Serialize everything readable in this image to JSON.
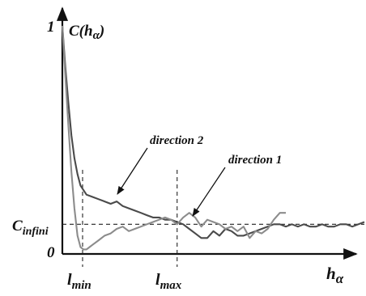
{
  "chart_data": {
    "type": "line",
    "title": "",
    "xlabel": "hα",
    "ylabel": "C(hα)",
    "xlim": [
      0,
      100
    ],
    "ylim": [
      0,
      1
    ],
    "grid": false,
    "legend": "none",
    "y_tick_labels": {
      "top": "1",
      "zero": "0",
      "c_infini_main": "C",
      "c_infini_sub": "infini"
    },
    "y_title": {
      "main": "C(h",
      "sub": "α",
      "close": ")"
    },
    "x_title": {
      "main": "h",
      "sub": "α"
    },
    "x_marks": [
      {
        "main": "l",
        "sub": "min",
        "x": 6.7
      },
      {
        "main": "l",
        "sub": "max",
        "x": 38
      }
    ],
    "c_infini_value": 0.13,
    "colors": {
      "direction_1": "#8c8c8c",
      "direction_2": "#4a4a4a",
      "axes": "#111111"
    },
    "series": [
      {
        "name": "direction 2",
        "x": [
          0,
          1,
          2,
          3,
          4,
          5,
          6,
          8,
          10,
          12,
          14,
          16,
          18,
          20,
          22,
          24,
          26,
          28,
          30,
          32,
          34,
          36,
          38,
          40,
          42,
          44,
          46,
          48,
          50,
          52,
          54,
          56,
          58,
          60,
          62,
          64,
          66,
          68,
          70,
          72,
          74,
          76,
          78,
          80,
          82,
          84,
          86,
          88,
          90,
          92,
          94,
          96,
          98,
          100
        ],
        "y": [
          1.0,
          0.82,
          0.66,
          0.52,
          0.42,
          0.35,
          0.3,
          0.26,
          0.25,
          0.24,
          0.23,
          0.22,
          0.23,
          0.21,
          0.2,
          0.19,
          0.18,
          0.17,
          0.16,
          0.16,
          0.15,
          0.15,
          0.14,
          0.13,
          0.11,
          0.09,
          0.07,
          0.07,
          0.1,
          0.08,
          0.11,
          0.1,
          0.08,
          0.08,
          0.09,
          0.1,
          0.11,
          0.12,
          0.13,
          0.13,
          0.12,
          0.13,
          0.12,
          0.13,
          0.12,
          0.12,
          0.13,
          0.12,
          0.12,
          0.13,
          0.13,
          0.12,
          0.13,
          0.14
        ]
      },
      {
        "name": "direction 1",
        "x": [
          0,
          1,
          2,
          3,
          4,
          5,
          6,
          7,
          8,
          9,
          10,
          12,
          14,
          16,
          18,
          20,
          22,
          24,
          26,
          28,
          30,
          32,
          34,
          36,
          38,
          40,
          42,
          44,
          46,
          48,
          50,
          52,
          54,
          56,
          58,
          60,
          62,
          64,
          66,
          68,
          70,
          72,
          74
        ],
        "y": [
          1.0,
          0.78,
          0.56,
          0.36,
          0.2,
          0.08,
          0.03,
          0.02,
          0.02,
          0.03,
          0.04,
          0.06,
          0.08,
          0.09,
          0.11,
          0.12,
          0.1,
          0.11,
          0.12,
          0.13,
          0.14,
          0.15,
          0.16,
          0.15,
          0.13,
          0.16,
          0.18,
          0.16,
          0.12,
          0.15,
          0.14,
          0.13,
          0.11,
          0.12,
          0.1,
          0.12,
          0.07,
          0.1,
          0.09,
          0.11,
          0.15,
          0.18,
          0.18
        ]
      }
    ],
    "annotations": [
      {
        "text": "direction 2",
        "series": "direction 2"
      },
      {
        "text": "direction 1",
        "series": "direction 1"
      }
    ]
  }
}
